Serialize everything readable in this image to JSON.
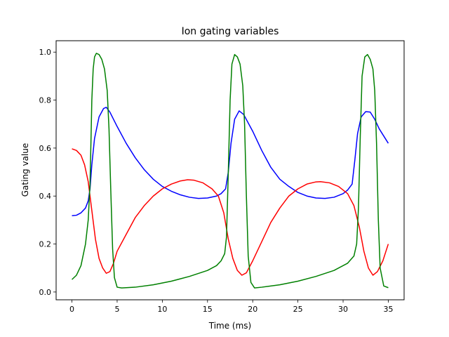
{
  "chart_data": {
    "type": "line",
    "title": "Ion gating variables",
    "xlabel": "Time (ms)",
    "ylabel": "Gating value",
    "xlim": [
      -1.75,
      36.75
    ],
    "ylim": [
      -0.0325,
      1.0475
    ],
    "xticks": [
      0,
      5,
      10,
      15,
      20,
      25,
      30,
      35
    ],
    "xtick_labels": [
      "0",
      "5",
      "10",
      "15",
      "20",
      "25",
      "30",
      "35"
    ],
    "yticks": [
      0.0,
      0.2,
      0.4,
      0.6,
      0.8,
      1.0
    ],
    "ytick_labels": [
      "0.0",
      "0.2",
      "0.4",
      "0.6",
      "0.8",
      "1.0"
    ],
    "grid": false,
    "series": [
      {
        "color": "#0000ff",
        "x": [
          0,
          0.5,
          1.0,
          1.5,
          1.8,
          2.0,
          2.2,
          2.5,
          3.0,
          3.5,
          3.8,
          4.2,
          5.0,
          6.0,
          7.0,
          8.0,
          9.0,
          10.0,
          11.0,
          12.0,
          13.0,
          14.0,
          15.0,
          16.0,
          16.5,
          17.0,
          17.3,
          17.6,
          18.0,
          18.5,
          19.0,
          20.0,
          21.0,
          22.0,
          23.0,
          24.0,
          25.0,
          26.0,
          27.0,
          28.0,
          29.0,
          30.0,
          30.5,
          31.0,
          31.3,
          31.6,
          32.0,
          32.5,
          33.0,
          33.5,
          34.0,
          34.5,
          35.0
        ],
        "y": [
          0.318,
          0.32,
          0.33,
          0.35,
          0.38,
          0.43,
          0.53,
          0.64,
          0.73,
          0.765,
          0.77,
          0.75,
          0.69,
          0.62,
          0.56,
          0.51,
          0.47,
          0.44,
          0.42,
          0.405,
          0.395,
          0.39,
          0.392,
          0.4,
          0.41,
          0.43,
          0.5,
          0.62,
          0.72,
          0.755,
          0.74,
          0.67,
          0.59,
          0.52,
          0.47,
          0.44,
          0.415,
          0.4,
          0.392,
          0.39,
          0.395,
          0.41,
          0.425,
          0.45,
          0.55,
          0.66,
          0.73,
          0.752,
          0.75,
          0.72,
          0.68,
          0.65,
          0.62
        ]
      },
      {
        "color": "#ff0000",
        "x": [
          0,
          0.5,
          1.0,
          1.4,
          1.8,
          2.2,
          2.6,
          3.0,
          3.4,
          3.8,
          4.2,
          4.6,
          5.0,
          6.0,
          7.0,
          8.0,
          9.0,
          10.0,
          11.0,
          12.0,
          12.8,
          13.5,
          14.5,
          15.5,
          16.2,
          16.8,
          17.3,
          17.8,
          18.3,
          18.8,
          19.3,
          20.0,
          21.0,
          22.0,
          23.0,
          24.0,
          25.0,
          26.0,
          27.0,
          27.5,
          28.5,
          29.5,
          30.5,
          31.2,
          31.8,
          32.3,
          32.8,
          33.3,
          33.8,
          34.4,
          35.0
        ],
        "y": [
          0.597,
          0.59,
          0.57,
          0.53,
          0.46,
          0.34,
          0.22,
          0.14,
          0.1,
          0.078,
          0.085,
          0.12,
          0.17,
          0.24,
          0.31,
          0.36,
          0.4,
          0.43,
          0.45,
          0.463,
          0.468,
          0.466,
          0.455,
          0.43,
          0.4,
          0.33,
          0.22,
          0.14,
          0.09,
          0.07,
          0.08,
          0.13,
          0.21,
          0.29,
          0.35,
          0.4,
          0.43,
          0.45,
          0.459,
          0.46,
          0.455,
          0.44,
          0.41,
          0.36,
          0.27,
          0.17,
          0.1,
          0.07,
          0.085,
          0.13,
          0.2
        ]
      },
      {
        "color": "#008000",
        "x": [
          0,
          0.5,
          1.0,
          1.5,
          1.8,
          2.0,
          2.1,
          2.2,
          2.35,
          2.5,
          2.7,
          3.0,
          3.3,
          3.6,
          3.9,
          4.1,
          4.3,
          4.5,
          4.7,
          5.0,
          5.5,
          7.0,
          9.0,
          11.0,
          13.0,
          15.0,
          16.0,
          16.5,
          16.9,
          17.1,
          17.3,
          17.5,
          17.7,
          18.0,
          18.3,
          18.6,
          18.9,
          19.1,
          19.3,
          19.5,
          19.8,
          20.2,
          21.0,
          23.0,
          25.0,
          27.0,
          29.0,
          30.5,
          31.2,
          31.5,
          31.7,
          31.9,
          32.1,
          32.4,
          32.7,
          33.0,
          33.3,
          33.5,
          33.7,
          33.9,
          34.1,
          34.5,
          35.0
        ],
        "y": [
          0.052,
          0.07,
          0.11,
          0.2,
          0.3,
          0.45,
          0.62,
          0.8,
          0.93,
          0.98,
          0.995,
          0.99,
          0.97,
          0.93,
          0.84,
          0.68,
          0.42,
          0.18,
          0.06,
          0.02,
          0.017,
          0.02,
          0.03,
          0.045,
          0.065,
          0.09,
          0.11,
          0.13,
          0.16,
          0.23,
          0.5,
          0.8,
          0.95,
          0.99,
          0.98,
          0.95,
          0.86,
          0.7,
          0.4,
          0.15,
          0.04,
          0.017,
          0.02,
          0.03,
          0.045,
          0.065,
          0.09,
          0.12,
          0.15,
          0.2,
          0.35,
          0.65,
          0.9,
          0.98,
          0.99,
          0.97,
          0.93,
          0.84,
          0.62,
          0.3,
          0.1,
          0.025,
          0.018
        ]
      }
    ]
  }
}
